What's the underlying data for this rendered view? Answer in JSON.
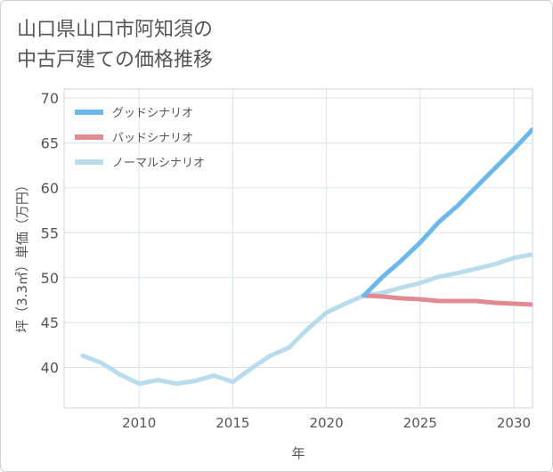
{
  "title_lines": [
    "山口県山口市阿知須の",
    "中古戸建ての価格推移"
  ],
  "chart_data": {
    "type": "line",
    "title": "山口県山口市阿知須の中古戸建ての価格推移",
    "xlabel": "年",
    "ylabel": "坪（3.3㎡）単価（万円）",
    "xlim": [
      2006,
      2031
    ],
    "ylim": [
      35.5,
      71
    ],
    "xticks": [
      2010,
      2015,
      2020,
      2025,
      2030
    ],
    "yticks": [
      40,
      45,
      50,
      55,
      60,
      65,
      70
    ],
    "grid": true,
    "legend_position": "top-left",
    "series": [
      {
        "name": "グッドシナリオ",
        "color": "#6cb8ec",
        "x": [
          2022,
          2023,
          2024,
          2025,
          2026,
          2027,
          2028,
          2029,
          2030,
          2031
        ],
        "values": [
          48.0,
          50.1,
          51.9,
          53.9,
          56.2,
          58.0,
          60.1,
          62.2,
          64.3,
          66.5
        ]
      },
      {
        "name": "バッドシナリオ",
        "color": "#e18a92",
        "x": [
          2022,
          2023,
          2024,
          2025,
          2026,
          2027,
          2028,
          2029,
          2030,
          2031
        ],
        "values": [
          48.0,
          47.9,
          47.7,
          47.6,
          47.4,
          47.4,
          47.4,
          47.2,
          47.1,
          47.0
        ]
      },
      {
        "name": "ノーマルシナリオ",
        "color": "#b9dcec",
        "x": [
          2007,
          2008,
          2009,
          2010,
          2011,
          2012,
          2013,
          2014,
          2015,
          2016,
          2017,
          2018,
          2019,
          2020,
          2021,
          2022,
          2023,
          2024,
          2025,
          2026,
          2027,
          2028,
          2029,
          2030,
          2031
        ],
        "values": [
          41.3,
          40.5,
          39.2,
          38.2,
          38.6,
          38.2,
          38.5,
          39.1,
          38.4,
          39.9,
          41.3,
          42.2,
          44.3,
          46.1,
          47.1,
          48.0,
          48.3,
          48.9,
          49.4,
          50.1,
          50.5,
          51.0,
          51.5,
          52.2,
          52.6
        ]
      }
    ]
  }
}
